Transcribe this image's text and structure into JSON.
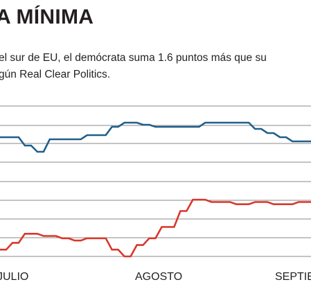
{
  "header": {
    "title": "A MÍNIMA",
    "subtitle_line1": "el sur de EU, el demócrata suma 1.6 puntos más que su",
    "subtitle_line2": "gún Real Clear Politics."
  },
  "colors": {
    "blue_series": "#1f5f8b",
    "red_series": "#d9372a",
    "gridline": "#8a8a8a",
    "text": "#231f20"
  },
  "chart_data": {
    "type": "line",
    "x_tick_labels": [
      "JULIO",
      "AGOSTO",
      "SEPTIE"
    ],
    "x": [
      0,
      2,
      4,
      6,
      8,
      10,
      12,
      14,
      16,
      18,
      20,
      22,
      24,
      26,
      28,
      30,
      32,
      34,
      36,
      38,
      40,
      42,
      44,
      46,
      48,
      50,
      52,
      54,
      56,
      58,
      60,
      62,
      64,
      66,
      68,
      70,
      72,
      74,
      76,
      78,
      80,
      82,
      84,
      86,
      88,
      90,
      92,
      94,
      96,
      98,
      100
    ],
    "series": [
      {
        "values": [
          46.9,
          46.9,
          46.9,
          46.9,
          46.5,
          46.5,
          46.2,
          46.2,
          46.8,
          46.8,
          46.8,
          46.8,
          46.8,
          46.8,
          47.0,
          47.0,
          47.0,
          47.0,
          47.4,
          47.4,
          47.6,
          47.6,
          47.6,
          47.5,
          47.5,
          47.4,
          47.4,
          47.4,
          47.4,
          47.4,
          47.4,
          47.4,
          47.4,
          47.6,
          47.6,
          47.6,
          47.6,
          47.6,
          47.6,
          47.6,
          47.6,
          47.3,
          47.3,
          47.1,
          47.1,
          46.9,
          46.9,
          46.7,
          46.7,
          46.7,
          46.7
        ],
        "ylim": [
          45.7,
          48.4
        ]
      },
      {
        "values": [
          40.5,
          40.5,
          40.8,
          40.8,
          41.2,
          41.2,
          41.2,
          41.1,
          41.1,
          41.1,
          41.0,
          41.0,
          40.9,
          40.9,
          41.0,
          41.0,
          41.0,
          41.0,
          40.5,
          40.5,
          40.2,
          40.2,
          40.7,
          40.7,
          41.0,
          41.0,
          41.5,
          41.5,
          41.5,
          42.2,
          42.2,
          42.7,
          42.7,
          42.7,
          42.6,
          42.6,
          42.6,
          42.6,
          42.5,
          42.5,
          42.5,
          42.6,
          42.6,
          42.6,
          42.5,
          42.5,
          42.5,
          42.5,
          42.6,
          42.6,
          42.6
        ],
        "ylim": [
          40.2,
          43.5
        ]
      }
    ]
  }
}
